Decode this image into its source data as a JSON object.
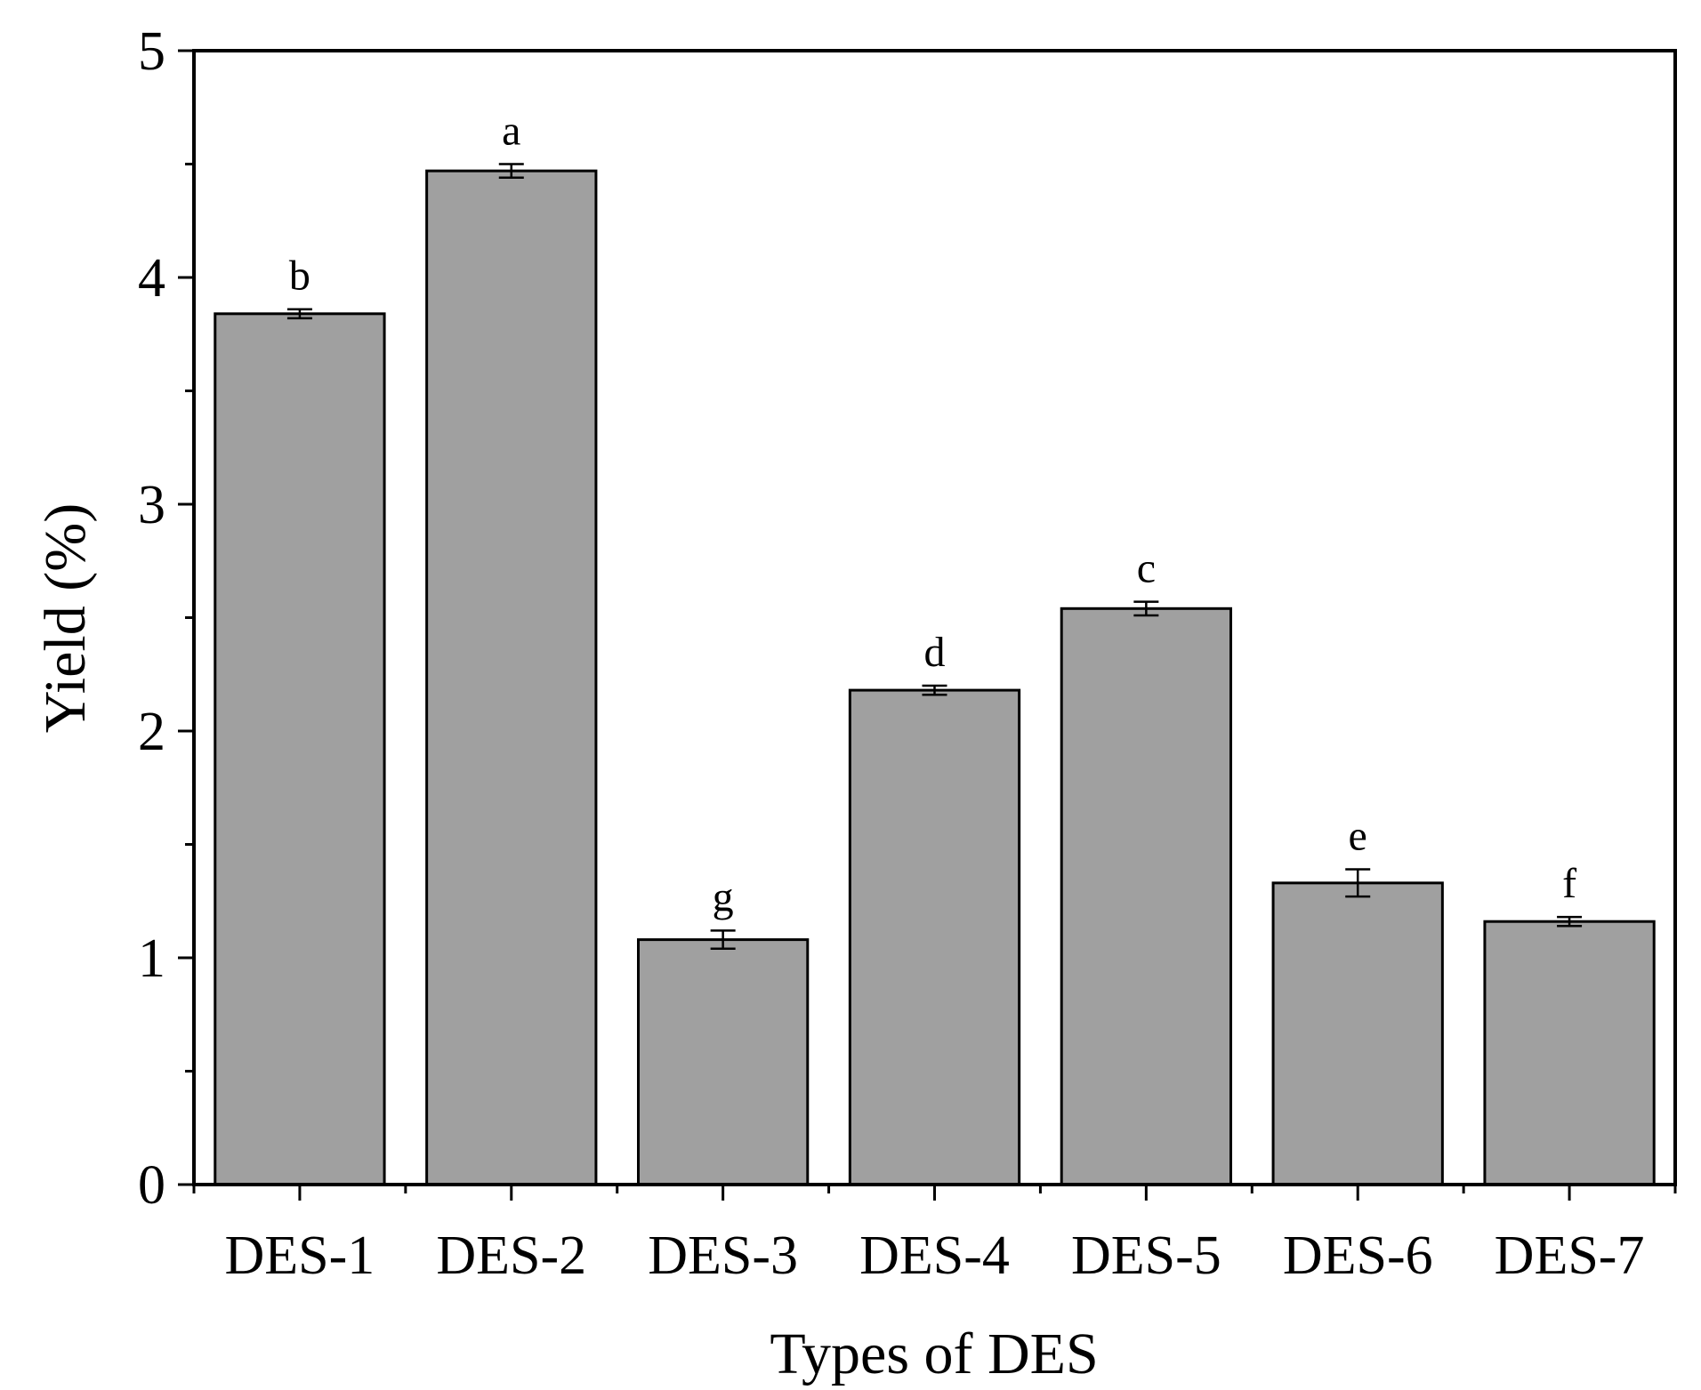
{
  "chart_data": {
    "type": "bar",
    "xlabel": "Types of DES",
    "ylabel": "Yield (%)",
    "ylim": [
      0,
      5
    ],
    "yticks": [
      0,
      1,
      2,
      3,
      4,
      5
    ],
    "grid": false,
    "categories": [
      "DES-1",
      "DES-2",
      "DES-3",
      "DES-4",
      "DES-5",
      "DES-6",
      "DES-7"
    ],
    "values": [
      3.84,
      4.47,
      1.08,
      2.18,
      2.54,
      1.33,
      1.16
    ],
    "errors": [
      0.02,
      0.03,
      0.04,
      0.02,
      0.03,
      0.06,
      0.02
    ],
    "significance_labels": [
      "b",
      "a",
      "g",
      "d",
      "c",
      "e",
      "f"
    ],
    "colors": {
      "bar_fill": "#a0a0a0",
      "bar_stroke": "#000000"
    }
  }
}
